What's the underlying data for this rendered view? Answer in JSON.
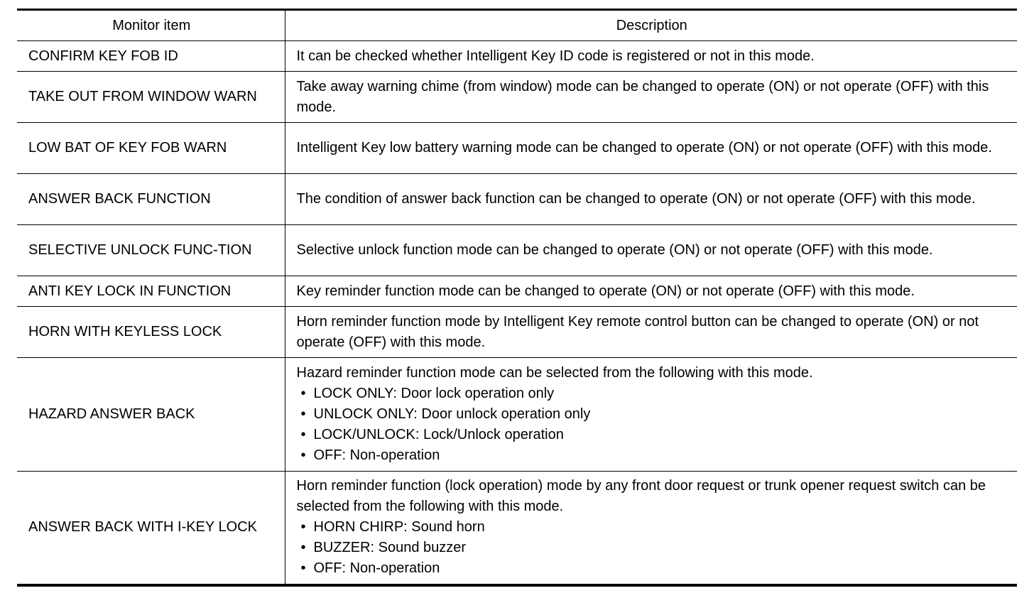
{
  "headers": [
    "Monitor item",
    "Description"
  ],
  "rows": [
    {
      "item": "CONFIRM KEY FOB ID",
      "desc": "It can be checked whether Intelligent Key ID code is registered or not in this mode.",
      "bullets": []
    },
    {
      "item": "TAKE OUT FROM WINDOW WARN",
      "desc": "Take away warning chime (from window) mode can be changed to operate (ON) or not operate (OFF) with this mode.",
      "bullets": []
    },
    {
      "item": "LOW BAT OF KEY FOB WARN",
      "desc": "Intelligent Key low battery warning mode can be changed to operate (ON) or not operate (OFF) with this mode.",
      "bullets": []
    },
    {
      "item": "ANSWER BACK FUNCTION",
      "desc": "The condition of answer back function can be changed to operate (ON) or not operate (OFF) with this mode.",
      "bullets": []
    },
    {
      "item": "SELECTIVE UNLOCK FUNC-TION",
      "desc": "Selective unlock function mode can be changed to operate (ON) or not operate (OFF) with this mode.",
      "bullets": []
    },
    {
      "item": "ANTI KEY LOCK IN FUNCTION",
      "desc": "Key reminder function mode can be changed to operate (ON) or not operate (OFF) with this mode.",
      "bullets": []
    },
    {
      "item": "HORN WITH KEYLESS LOCK",
      "desc": "Horn reminder function mode by Intelligent Key remote control button can be changed to operate (ON) or not operate (OFF) with this mode.",
      "bullets": []
    },
    {
      "item": "HAZARD ANSWER BACK",
      "desc": "Hazard reminder function mode can be selected from the following with this mode.",
      "bullets": [
        "LOCK ONLY: Door lock operation only",
        "UNLOCK ONLY: Door unlock operation only",
        "LOCK/UNLOCK: Lock/Unlock operation",
        "OFF: Non-operation"
      ]
    },
    {
      "item": "ANSWER BACK WITH I-KEY LOCK",
      "desc": "Horn reminder function (lock operation) mode by any front door request or trunk opener request switch can be selected from the following with this mode.",
      "bullets": [
        "HORN CHIRP: Sound horn",
        "BUZZER: Sound buzzer",
        "OFF: Non-operation"
      ]
    }
  ]
}
